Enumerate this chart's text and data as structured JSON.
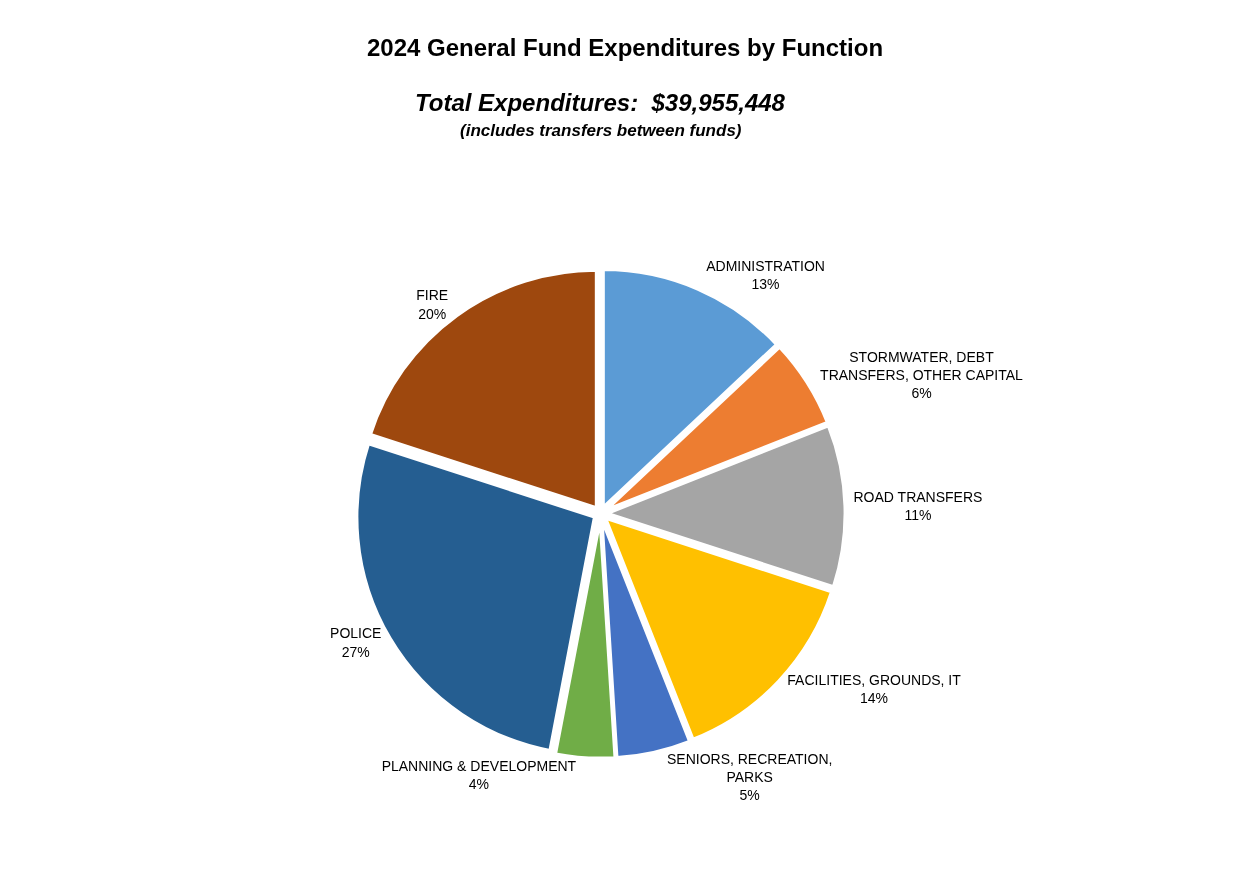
{
  "chart_data": {
    "type": "pie",
    "title": "2024 General Fund Expenditures by Function",
    "subtitle": "Total Expenditures:  $39,955,448",
    "annotations": [
      "(includes transfers between funds)"
    ],
    "categories": [
      "ADMINISTRATION",
      "STORMWATER, DEBT TRANSFERS, OTHER CAPITAL",
      "ROAD TRANSFERS",
      "FACILITIES, GROUNDS, IT",
      "SENIORS, RECREATION, PARKS",
      "PLANNING & DEVELOPMENT",
      "POLICE",
      "FIRE"
    ],
    "values": [
      13,
      6,
      11,
      14,
      5,
      4,
      27,
      20
    ],
    "value_labels": [
      "13%",
      "6%",
      "11%",
      "14%",
      "5%",
      "4%",
      "27%",
      "20%"
    ],
    "colors": [
      "#5b9bd5",
      "#ed7d31",
      "#a5a5a5",
      "#ffc000",
      "#4472c4",
      "#70ad47",
      "#255e91",
      "#9e480e"
    ],
    "legend": false
  }
}
